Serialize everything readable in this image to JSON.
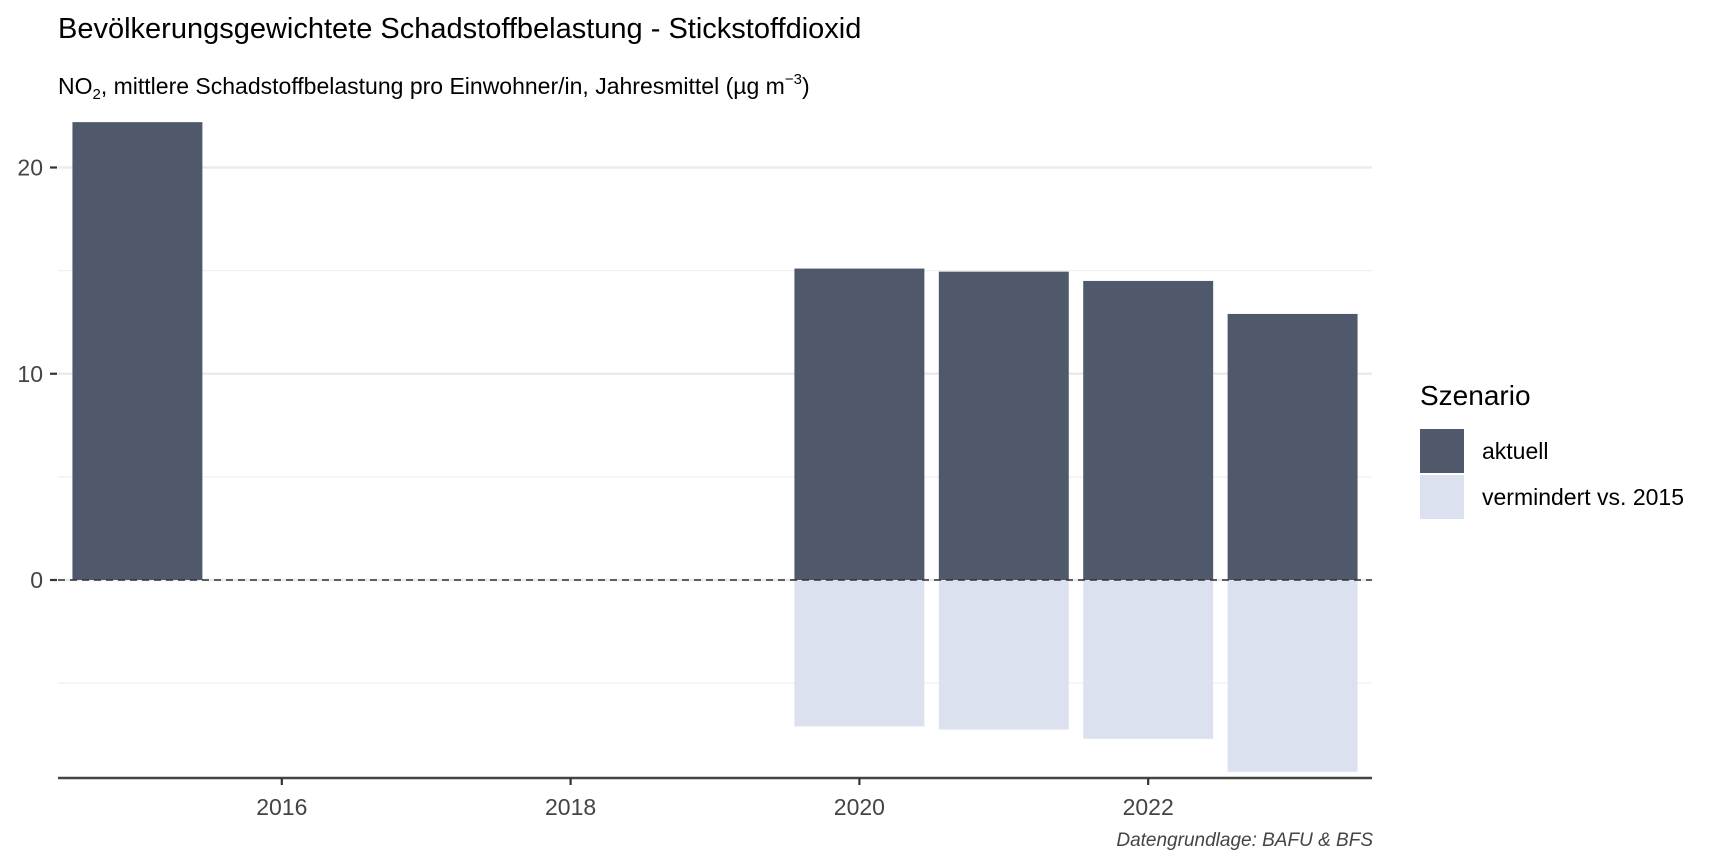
{
  "chart_data": {
    "type": "bar",
    "title": "Bevölkerungsgewichtete Schadstoffbelastung - Stickstoffdioxid",
    "subtitle": {
      "pre": "NO",
      "sub": "2",
      "mid": ", mittlere Schadstoffbelastung pro Einwohner/in, Jahresmittel (µg m",
      "sup": "−3",
      "post": ")"
    },
    "caption": "Datengrundlage: BAFU & BFS",
    "xlabel": "",
    "ylabel": "",
    "x_ticks": [
      "2016",
      "2018",
      "2020",
      "2022"
    ],
    "y_ticks": [
      "0",
      "10",
      "20"
    ],
    "xlim": [
      2014.45,
      2023.55
    ],
    "ylim": [
      -9.6,
      22.4
    ],
    "grid": true,
    "legend_position": "right",
    "legend_title": "Szenario",
    "x": [
      2015,
      2020,
      2021,
      2022,
      2023
    ],
    "series": [
      {
        "name": "aktuell",
        "color": "#4f596b",
        "values": [
          22.2,
          15.1,
          14.95,
          14.5,
          12.9
        ]
      },
      {
        "name": "vermindert vs. 2015",
        "color": "#dce1ef",
        "values": [
          0,
          -7.1,
          -7.25,
          -7.7,
          -9.3
        ]
      }
    ],
    "annotations": [
      {
        "type": "hline",
        "y": 0,
        "style": "dashed"
      }
    ]
  }
}
